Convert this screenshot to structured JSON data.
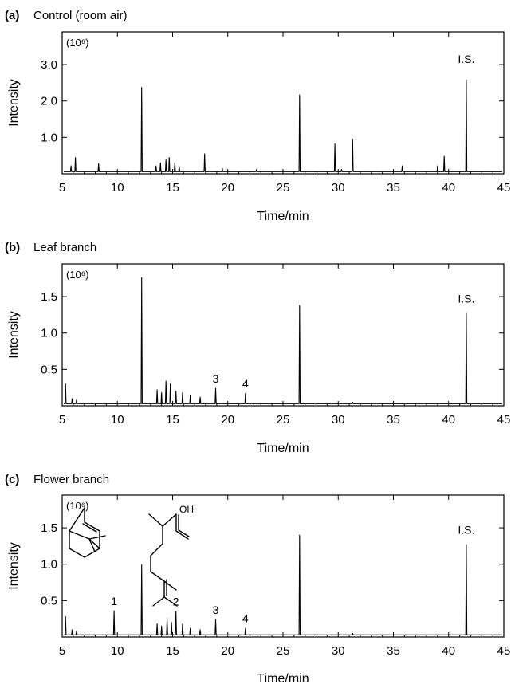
{
  "chart_data": [
    {
      "type": "line",
      "panel_letter": "(a)",
      "title": "Control (room air)",
      "xlabel": "Time/min",
      "ylabel": "Intensity",
      "scale_note": "(10⁶)",
      "xlim": [
        5,
        45
      ],
      "ylim": [
        0,
        3.9
      ],
      "x_ticks": [
        5,
        10,
        15,
        20,
        25,
        30,
        35,
        40,
        45
      ],
      "y_ticks": [
        1.0,
        2.0,
        3.0
      ],
      "y_tick_labels": [
        "1.0",
        "2.0",
        "3.0"
      ],
      "baseline": 0.06,
      "peaks": [
        {
          "x": 5.8,
          "y": 0.22
        },
        {
          "x": 6.2,
          "y": 0.45
        },
        {
          "x": 8.3,
          "y": 0.28
        },
        {
          "x": 12.2,
          "y": 2.37
        },
        {
          "x": 13.5,
          "y": 0.22
        },
        {
          "x": 13.9,
          "y": 0.3
        },
        {
          "x": 14.4,
          "y": 0.38
        },
        {
          "x": 14.7,
          "y": 0.45
        },
        {
          "x": 15.2,
          "y": 0.3
        },
        {
          "x": 15.6,
          "y": 0.2
        },
        {
          "x": 17.9,
          "y": 0.55
        },
        {
          "x": 19.5,
          "y": 0.15
        },
        {
          "x": 22.6,
          "y": 0.12
        },
        {
          "x": 26.5,
          "y": 2.17
        },
        {
          "x": 29.7,
          "y": 0.82
        },
        {
          "x": 30.3,
          "y": 0.12
        },
        {
          "x": 31.3,
          "y": 0.95
        },
        {
          "x": 35.8,
          "y": 0.22
        },
        {
          "x": 39.0,
          "y": 0.22
        },
        {
          "x": 39.6,
          "y": 0.48
        },
        {
          "x": 41.6,
          "y": 2.58
        }
      ],
      "annotations": [
        {
          "text": "I.S.",
          "x": 41.6,
          "y": 3.05
        }
      ]
    },
    {
      "type": "line",
      "panel_letter": "(b)",
      "title": "Leaf branch",
      "xlabel": "Time/min",
      "ylabel": "Intensity",
      "scale_note": "(10⁶)",
      "xlim": [
        5,
        45
      ],
      "ylim": [
        0,
        1.95
      ],
      "x_ticks": [
        5,
        10,
        15,
        20,
        25,
        30,
        35,
        40,
        45
      ],
      "y_ticks": [
        0.5,
        1.0,
        1.5
      ],
      "y_tick_labels": [
        "0.5",
        "1.0",
        "1.5"
      ],
      "baseline": 0.03,
      "peaks": [
        {
          "x": 5.3,
          "y": 0.3
        },
        {
          "x": 5.9,
          "y": 0.1
        },
        {
          "x": 6.3,
          "y": 0.08
        },
        {
          "x": 12.2,
          "y": 1.76
        },
        {
          "x": 13.6,
          "y": 0.22
        },
        {
          "x": 14.0,
          "y": 0.18
        },
        {
          "x": 14.4,
          "y": 0.34
        },
        {
          "x": 14.8,
          "y": 0.3
        },
        {
          "x": 15.3,
          "y": 0.2
        },
        {
          "x": 15.9,
          "y": 0.18
        },
        {
          "x": 16.6,
          "y": 0.14
        },
        {
          "x": 17.5,
          "y": 0.12
        },
        {
          "x": 18.9,
          "y": 0.24
        },
        {
          "x": 21.6,
          "y": 0.17
        },
        {
          "x": 26.5,
          "y": 1.38
        },
        {
          "x": 31.3,
          "y": 0.05
        },
        {
          "x": 41.6,
          "y": 1.28
        }
      ],
      "annotations": [
        {
          "text": "3",
          "x": 18.9,
          "y": 0.32
        },
        {
          "text": "4",
          "x": 21.6,
          "y": 0.25
        },
        {
          "text": "I.S.",
          "x": 41.6,
          "y": 1.42
        }
      ]
    },
    {
      "type": "line",
      "panel_letter": "(c)",
      "title": "Flower branch",
      "xlabel": "Time/min",
      "ylabel": "Intensity",
      "scale_note": "(10⁶)",
      "xlim": [
        5,
        45
      ],
      "ylim": [
        0,
        1.95
      ],
      "x_ticks": [
        5,
        10,
        15,
        20,
        25,
        30,
        35,
        40,
        45
      ],
      "y_ticks": [
        0.5,
        1.0,
        1.5
      ],
      "y_tick_labels": [
        "0.5",
        "1.0",
        "1.5"
      ],
      "baseline": 0.03,
      "peaks": [
        {
          "x": 5.3,
          "y": 0.28
        },
        {
          "x": 5.9,
          "y": 0.1
        },
        {
          "x": 6.3,
          "y": 0.08
        },
        {
          "x": 9.7,
          "y": 0.36
        },
        {
          "x": 12.2,
          "y": 0.99
        },
        {
          "x": 13.6,
          "y": 0.18
        },
        {
          "x": 14.0,
          "y": 0.15
        },
        {
          "x": 14.5,
          "y": 0.25
        },
        {
          "x": 14.9,
          "y": 0.2
        },
        {
          "x": 15.3,
          "y": 0.35
        },
        {
          "x": 15.9,
          "y": 0.18
        },
        {
          "x": 16.6,
          "y": 0.12
        },
        {
          "x": 17.5,
          "y": 0.1
        },
        {
          "x": 18.9,
          "y": 0.24
        },
        {
          "x": 21.6,
          "y": 0.12
        },
        {
          "x": 26.5,
          "y": 1.4
        },
        {
          "x": 31.3,
          "y": 0.05
        },
        {
          "x": 41.6,
          "y": 1.27
        }
      ],
      "annotations": [
        {
          "text": "1",
          "x": 9.7,
          "y": 0.44
        },
        {
          "text": "2",
          "x": 15.3,
          "y": 0.43
        },
        {
          "text": "3",
          "x": 18.9,
          "y": 0.32
        },
        {
          "text": "4",
          "x": 21.6,
          "y": 0.2
        },
        {
          "text": "I.S.",
          "x": 41.6,
          "y": 1.42
        }
      ]
    }
  ],
  "structures": {
    "linalool_oh_label": "OH"
  }
}
